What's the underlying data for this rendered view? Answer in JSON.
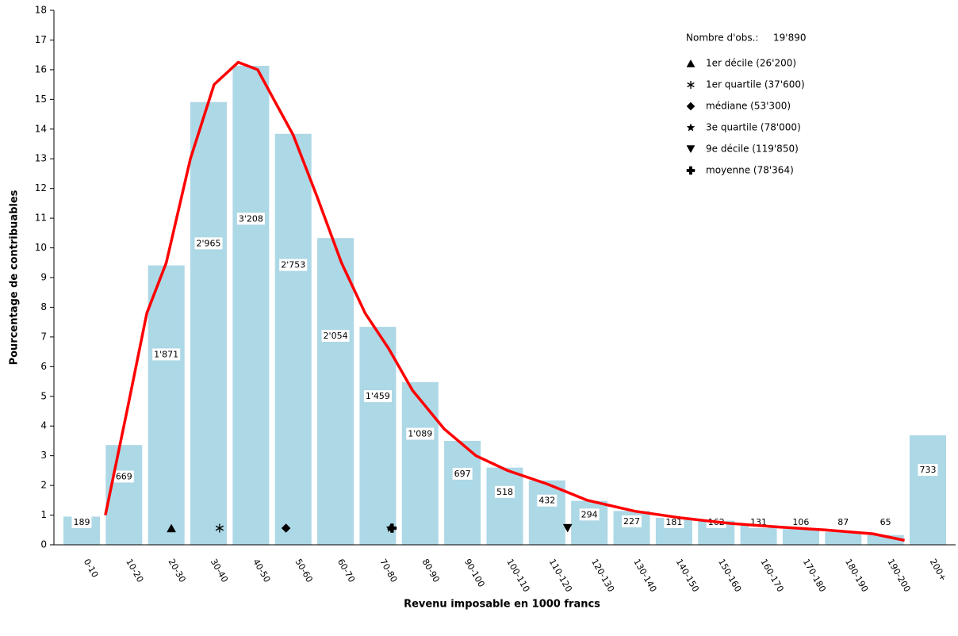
{
  "chart_data": {
    "type": "histogram",
    "x_label": "Revenu imposable en 1000 francs",
    "y_label": "Pourcentage de contribuables",
    "categories": [
      "0-10",
      "10-20",
      "20-30",
      "30-40",
      "40-50",
      "50-60",
      "60-70",
      "70-80",
      "80-90",
      "90-100",
      "100-110",
      "110-120",
      "120-130",
      "130-140",
      "140-150",
      "150-160",
      "160-170",
      "170-180",
      "180-190",
      "190-200",
      "200+"
    ],
    "values": [
      0.95,
      3.36,
      9.41,
      14.91,
      16.13,
      13.84,
      10.33,
      7.34,
      5.48,
      3.5,
      2.6,
      2.17,
      1.48,
      1.14,
      0.91,
      0.81,
      0.66,
      0.53,
      0.44,
      0.33,
      3.69
    ],
    "color": "#add8e6",
    "counts": [
      189,
      669,
      {
        "value": 1871,
        "label": "1'871"
      },
      {
        "value": 2965,
        "label": "2'965"
      },
      {
        "value": 3208,
        "label": "3'208"
      },
      {
        "value": 2753,
        "label": "2'753"
      },
      {
        "value": 2054,
        "label": "2'054"
      },
      {
        "value": 1459,
        "label": "1'459"
      },
      {
        "value": 1089,
        "label": "1'089"
      },
      697,
      518,
      432,
      294,
      227,
      181,
      162,
      131,
      106,
      87,
      65,
      733
    ],
    "curve": {
      "color": "#ff0000",
      "x": [
        10.6,
        15.7,
        20.4,
        25,
        30.7,
        36.3,
        42,
        46.6,
        50.4,
        55,
        60.7,
        66.4,
        72,
        77.6,
        83.2,
        90.7,
        98.2,
        105.7,
        115,
        124.5,
        135.8,
        147,
        158.3,
        169.5,
        180.8,
        192,
        199.5
      ],
      "y": [
        1,
        4.5,
        7.8,
        9.5,
        13,
        15.5,
        16.25,
        16,
        15,
        13.8,
        11.7,
        9.5,
        7.8,
        6.6,
        5.2,
        3.9,
        3,
        2.5,
        2.05,
        1.5,
        1.13,
        0.9,
        0.72,
        0.6,
        0.5,
        0.37,
        0.15
      ]
    },
    "observations": {
      "label": "Nombre d'obs.:",
      "value": 19890,
      "value_label": "19'890"
    },
    "markers": [
      {
        "label": "1er décile (26'200)",
        "value": 26.2,
        "symbol": "triangle-up"
      },
      {
        "label": "1er quartile (37'600)",
        "value": 37.6,
        "symbol": "asterisk"
      },
      {
        "label": "médiane (53'300)",
        "value": 53.3,
        "symbol": "diamond"
      },
      {
        "label": "3e quartile (78'000)",
        "value": 78,
        "symbol": "star"
      },
      {
        "label": "9e décile (119'850)",
        "value": 119.85,
        "symbol": "triangle-down"
      },
      {
        "label": "moyenne (78'364)",
        "value": 78.364,
        "symbol": "plus"
      }
    ],
    "ylim": [
      0,
      18
    ],
    "yticks": [
      0,
      1,
      2,
      3,
      4,
      5,
      6,
      7,
      8,
      9,
      10,
      11,
      12,
      13,
      14,
      15,
      16,
      17,
      18
    ],
    "grid": false
  }
}
